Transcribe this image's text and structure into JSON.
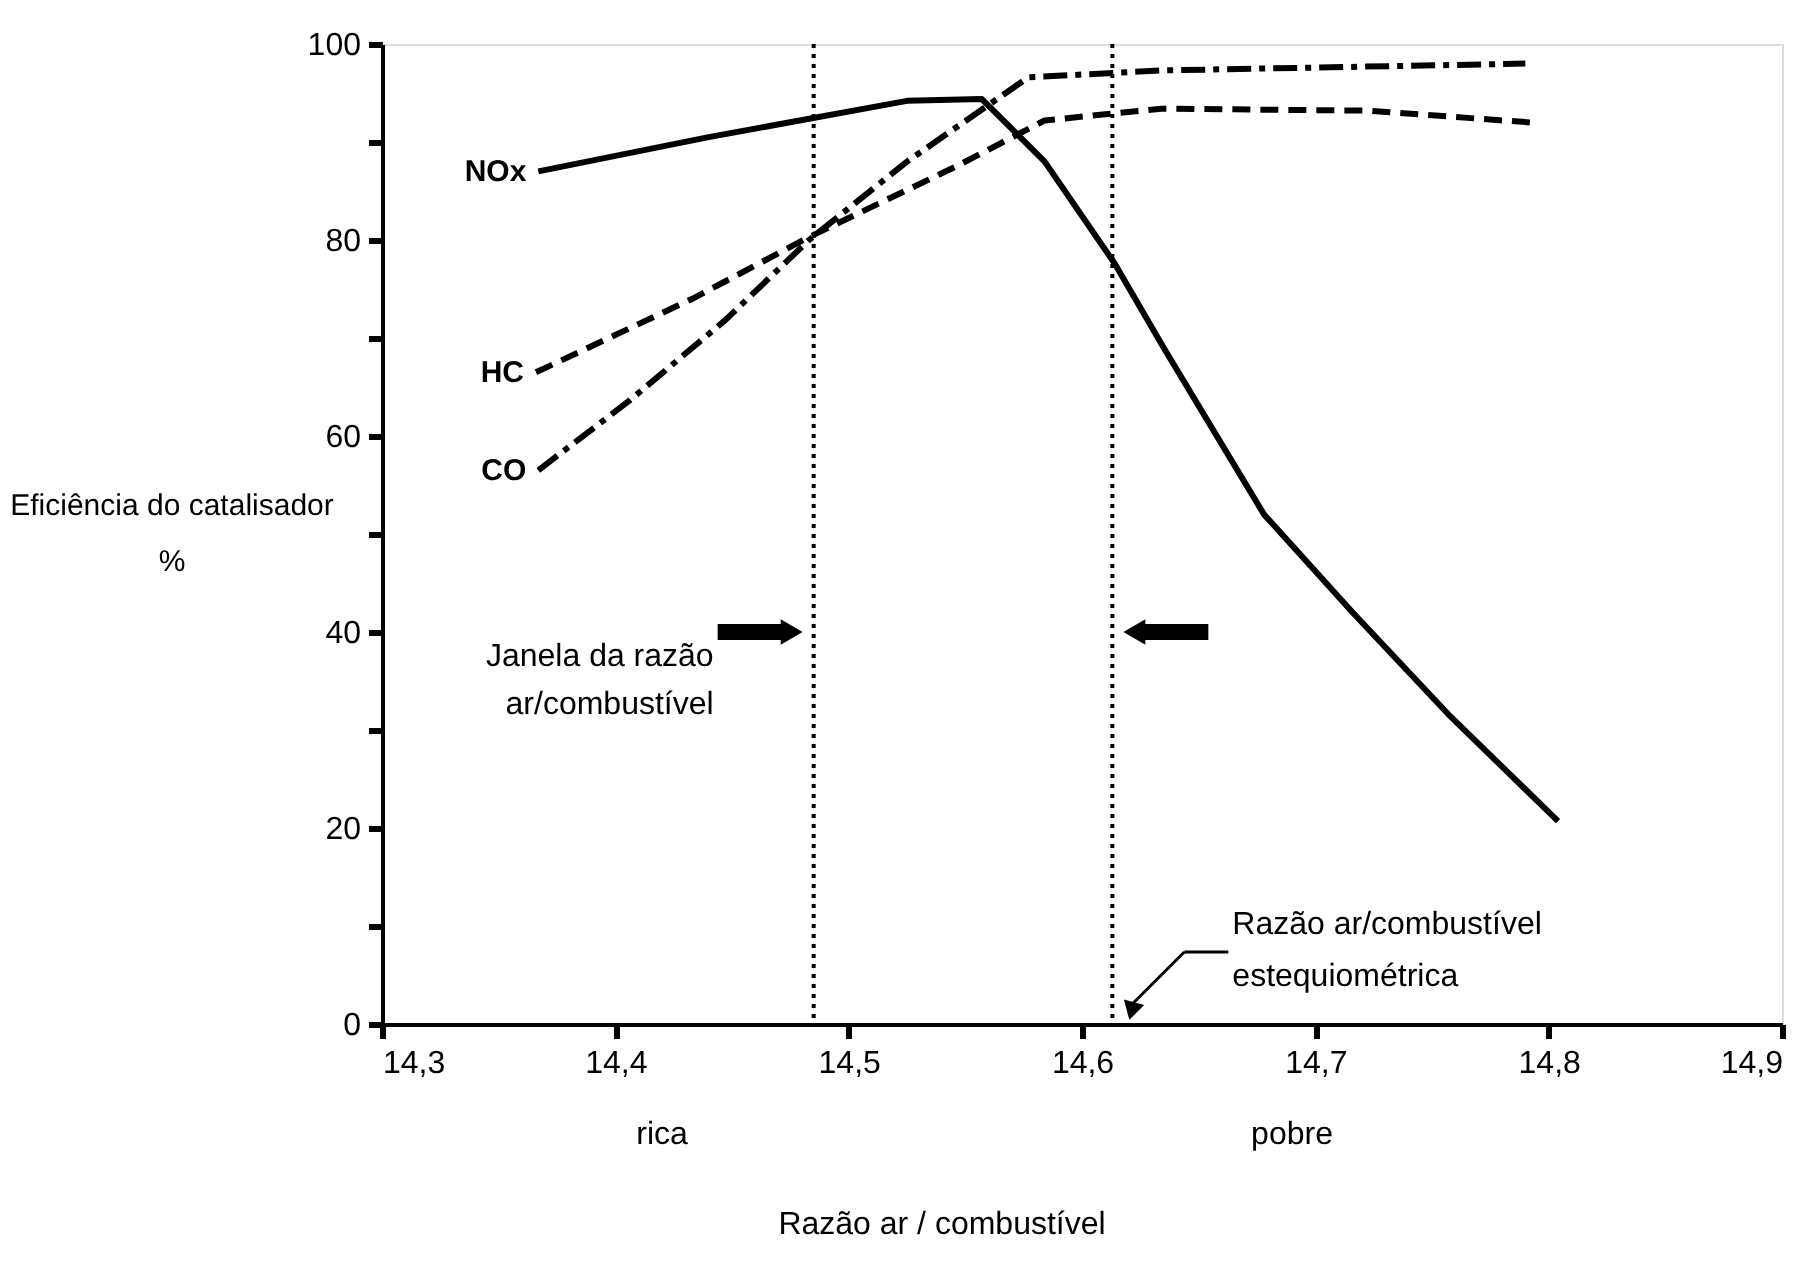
{
  "chart_data": {
    "type": "line",
    "xlabel": "Razão ar / combustível",
    "ylabel": "Eficiência do catalisador\n%",
    "xlim": [
      14.3,
      14.9
    ],
    "xticks": [
      {
        "value": 14.3,
        "label": "14,3"
      },
      {
        "value": 14.4,
        "label": "14,4"
      },
      {
        "value": 14.5,
        "label": "14,5"
      },
      {
        "value": 14.6,
        "label": "14,6"
      },
      {
        "value": 14.7,
        "label": "14,7"
      },
      {
        "value": 14.8,
        "label": "14,8"
      },
      {
        "value": 14.9,
        "label": "14,9"
      }
    ],
    "ylim": [
      0,
      100
    ],
    "yticks": [
      0,
      {
        "value": 10,
        "label": null
      },
      20,
      {
        "value": 30,
        "label": null
      },
      40,
      {
        "value": 50,
        "label": null
      },
      60,
      {
        "value": 70,
        "label": null
      },
      80,
      {
        "value": 90,
        "label": null
      },
      100
    ],
    "grid": false,
    "marker": "none",
    "series": [
      {
        "name": "NOx",
        "color": "#000000",
        "line_style": "solid",
        "x": [
          14.367,
          14.44,
          14.525,
          14.557,
          14.584,
          14.614,
          14.635,
          14.678,
          14.716,
          14.757,
          14.804
        ],
        "values": [
          87,
          90.5,
          94.2,
          94.4,
          88,
          77.6,
          69,
          52,
          42,
          31.6,
          20.7
        ]
      },
      {
        "name": "HC",
        "color": "#000000",
        "line_style": "dashed",
        "x": [
          14.366,
          14.433,
          14.483,
          14.546,
          14.584,
          14.634,
          14.722,
          14.792
        ],
        "values": [
          66.5,
          74,
          80.3,
          87.5,
          92.2,
          93.4,
          93.2,
          92
        ]
      },
      {
        "name": "CO",
        "color": "#000000",
        "line_style": "dashdot",
        "x": [
          14.367,
          14.406,
          14.447,
          14.483,
          14.525,
          14.577,
          14.634,
          14.79
        ],
        "values": [
          56.5,
          63.6,
          71.8,
          80,
          88,
          96.6,
          97.3,
          98
        ]
      }
    ],
    "ref_lines": [
      {
        "axis": "x",
        "value": 14.485,
        "line_style": "dotted",
        "color": "#000000"
      },
      {
        "axis": "x",
        "value": 14.613,
        "line_style": "dotted",
        "color": "#000000"
      }
    ],
    "annotations": [
      "Janela da razão\nar/combustível",
      "Razão ar/combustível\nestequiométrica",
      "rica",
      "pobre"
    ]
  }
}
